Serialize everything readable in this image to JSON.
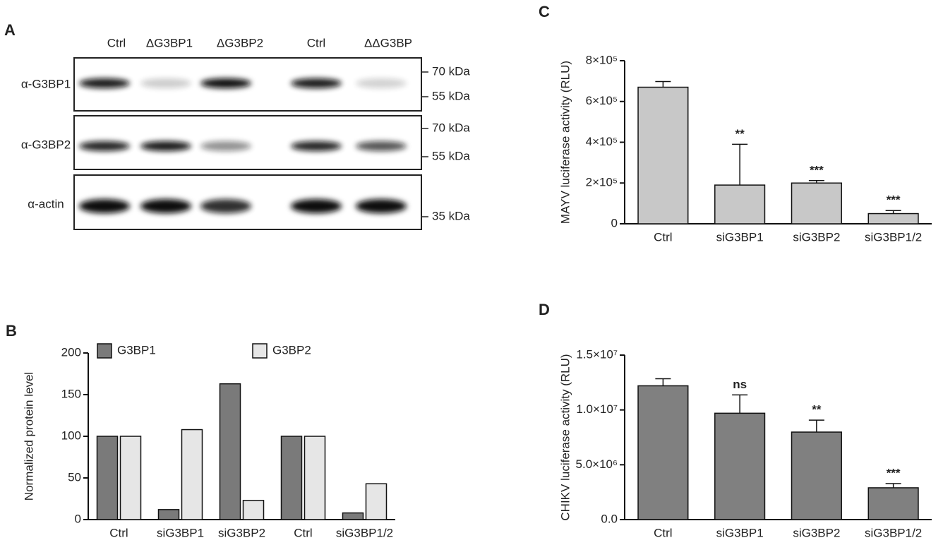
{
  "blot": {
    "panel": "A",
    "lanes": [
      "Ctrl",
      "ΔG3BP1",
      "ΔG3BP2",
      "Ctrl",
      "ΔΔG3BP"
    ],
    "rows": [
      {
        "label": "α-G3BP1",
        "markers": [
          "70 kDa",
          "55 kDa"
        ]
      },
      {
        "label": "α-G3BP2",
        "markers": [
          "70 kDa",
          "55 kDa"
        ]
      },
      {
        "label": "α-actin",
        "markers": [
          "35 kDa"
        ]
      }
    ]
  },
  "chart_data": [
    {
      "type": "bar",
      "panel": "B",
      "ylabel": "Normalized protein level",
      "categories": [
        "Ctrl",
        "siG3BP1",
        "siG3BP2",
        "Ctrl",
        "siG3BP1/2"
      ],
      "series": [
        {
          "name": "G3BP1",
          "color": "#7a7a7a",
          "values": [
            100,
            12,
            163,
            100,
            8
          ]
        },
        {
          "name": "G3BP2",
          "color": "#e6e6e6",
          "values": [
            100,
            108,
            23,
            100,
            43
          ]
        }
      ],
      "ylim": [
        0,
        200
      ],
      "yticks": [
        0,
        50,
        100,
        150,
        200
      ],
      "legend": "top"
    },
    {
      "type": "bar",
      "panel": "C",
      "ylabel": "MAYV luciferase activity  (RLU)",
      "categories": [
        "Ctrl",
        "siG3BP1",
        "siG3BP2",
        "siG3BP1/2"
      ],
      "values": [
        670000,
        190000,
        200000,
        50000
      ],
      "errors": [
        28000,
        200000,
        12000,
        15000
      ],
      "annotations": [
        null,
        "**",
        "***",
        "***"
      ],
      "color": "#c8c8c8",
      "ylim": [
        0,
        800000
      ],
      "yticks": [
        0,
        {
          "value": 200000,
          "label": "2×10⁵"
        },
        {
          "value": 400000,
          "label": "4×10⁵"
        },
        {
          "value": 600000,
          "label": "6×10⁵"
        },
        {
          "value": 800000,
          "label": "8×10⁵"
        }
      ]
    },
    {
      "type": "bar",
      "panel": "D",
      "ylabel": "CHIKV luciferase activity  (RLU)",
      "categories": [
        "Ctrl",
        "siG3BP1",
        "siG3BP2",
        "siG3BP1/2"
      ],
      "values": [
        12200000,
        9700000,
        7980000,
        2900000
      ],
      "errors": [
        640000,
        1670000,
        1090000,
        380000
      ],
      "annotations": [
        null,
        "ns",
        "**",
        "***"
      ],
      "color": "#808080",
      "ylim": [
        0,
        15000000
      ],
      "yticks": [
        {
          "value": 0,
          "label": "0.0"
        },
        {
          "value": 5000000,
          "label": "5.0×10⁶"
        },
        {
          "value": 10000000,
          "label": "1.0×10⁷"
        },
        {
          "value": 15000000,
          "label": "1.5×10⁷"
        }
      ]
    }
  ]
}
